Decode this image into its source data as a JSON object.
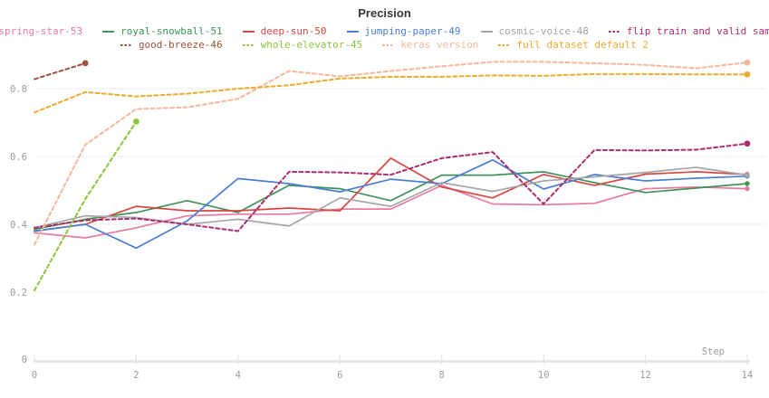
{
  "title": "Precision",
  "x_axis": {
    "label": "Step",
    "ticks": [
      0,
      2,
      4,
      6,
      8,
      10,
      12,
      14
    ]
  },
  "y_axis": {
    "ticks": [
      0.2,
      0.4,
      0.6,
      0.8
    ],
    "origin_label": "0"
  },
  "colors": {
    "title_text": "#363636",
    "axis_text": "#9b9b9b",
    "gridline": "#ececec",
    "axis_line": "#e4e4e4"
  },
  "chart_data": {
    "type": "line",
    "title": "Precision",
    "xlabel": "Step",
    "ylabel": "",
    "xlim": [
      0,
      14
    ],
    "ylim": [
      0,
      0.93
    ],
    "xticks": [
      0,
      2,
      4,
      6,
      8,
      10,
      12,
      14
    ],
    "yticks": [
      0.2,
      0.4,
      0.6,
      0.8
    ],
    "grid": "horizontal",
    "legend_position": "top",
    "x": [
      0,
      1,
      2,
      3,
      4,
      5,
      6,
      7,
      8,
      9,
      10,
      11,
      12,
      13,
      14
    ],
    "series": [
      {
        "name": "spring-star-53",
        "color": "#e87b9e",
        "dash": false,
        "values": [
          0.375,
          0.36,
          0.39,
          0.425,
          0.43,
          0.43,
          0.445,
          0.445,
          0.515,
          0.46,
          0.458,
          0.462,
          0.505,
          0.51,
          0.505
        ]
      },
      {
        "name": "royal-snowball-51",
        "color": "#3f9358",
        "dash": false,
        "values": [
          0.385,
          0.415,
          0.435,
          0.47,
          0.435,
          0.515,
          0.505,
          0.47,
          0.545,
          0.545,
          0.555,
          0.523,
          0.494,
          0.507,
          0.52
        ]
      },
      {
        "name": "deep-sun-50",
        "color": "#d64742",
        "dash": false,
        "values": [
          0.38,
          0.4,
          0.453,
          0.44,
          0.44,
          0.448,
          0.44,
          0.595,
          0.51,
          0.478,
          0.547,
          0.515,
          0.548,
          0.555,
          0.547
        ]
      },
      {
        "name": "jumping-paper-49",
        "color": "#4b7fd5",
        "dash": false,
        "values": [
          0.38,
          0.4,
          0.33,
          0.41,
          0.535,
          0.52,
          0.496,
          0.533,
          0.52,
          0.59,
          0.504,
          0.547,
          0.528,
          0.536,
          0.542
        ]
      },
      {
        "name": "cosmic-voice-48",
        "color": "#a6a6a6",
        "dash": false,
        "values": [
          0.39,
          0.425,
          0.42,
          0.4,
          0.415,
          0.395,
          0.478,
          0.453,
          0.523,
          0.497,
          0.528,
          0.54,
          0.553,
          0.568,
          0.545
        ]
      },
      {
        "name": "flip train and valid sample",
        "color": "#aa2e6e",
        "dash": true,
        "values": [
          0.39,
          0.412,
          0.417,
          0.4,
          0.38,
          0.555,
          0.553,
          0.546,
          0.595,
          0.613,
          0.46,
          0.619,
          0.618,
          0.62,
          0.638
        ]
      },
      {
        "name": "good-breeze-46",
        "color": "#9c5240",
        "dash": true,
        "values": [
          0.828,
          0.875
        ]
      },
      {
        "name": "whole-elevator-45",
        "color": "#8cc43c",
        "dash": true,
        "values": [
          0.205,
          0.475,
          0.703
        ]
      },
      {
        "name": "keras version",
        "color": "#f5b79a",
        "dash": true,
        "values": [
          0.34,
          0.635,
          0.74,
          0.745,
          0.77,
          0.852,
          0.836,
          0.852,
          0.866,
          0.879,
          0.879,
          0.875,
          0.87,
          0.86,
          0.877
        ]
      },
      {
        "name": "full dataset default 2",
        "color": "#ecaa2f",
        "dash": true,
        "values": [
          0.73,
          0.79,
          0.777,
          0.785,
          0.8,
          0.81,
          0.83,
          0.835,
          0.835,
          0.839,
          0.838,
          0.843,
          0.843,
          0.842,
          0.842
        ]
      }
    ],
    "legend_rows": [
      [
        0,
        1,
        2,
        3,
        4,
        5
      ],
      [
        6,
        7,
        8,
        9
      ]
    ]
  }
}
